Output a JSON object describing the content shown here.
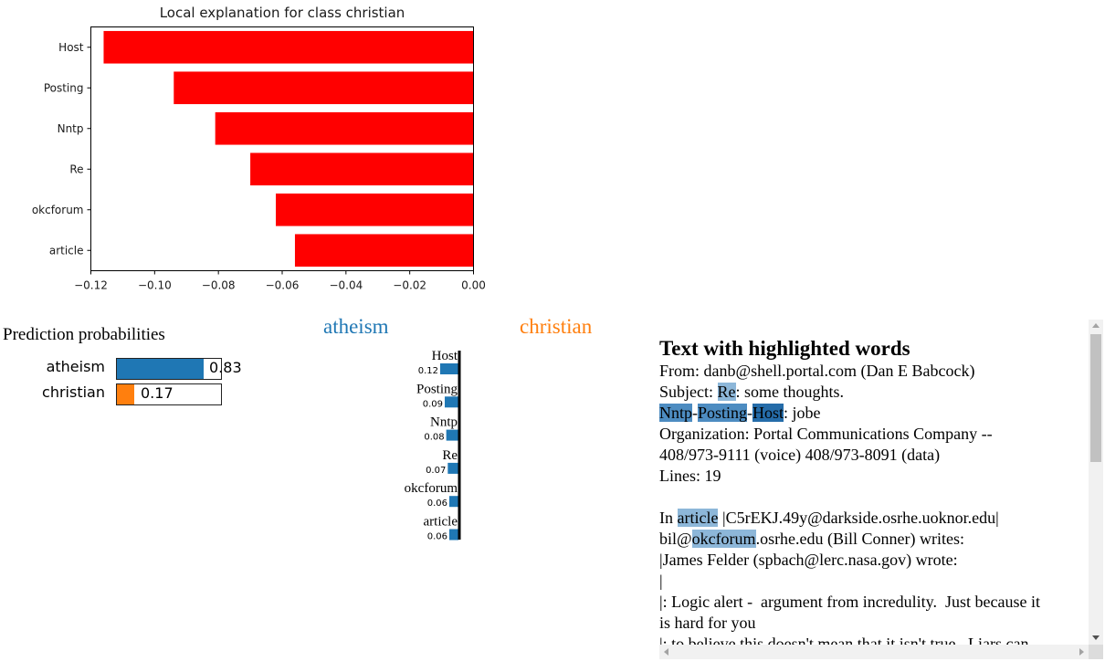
{
  "colors": {
    "bar": "#ff0000",
    "atheism": "#1f77b4",
    "christian": "#ff7f0e",
    "axis": "#000000"
  },
  "chart_data": [
    {
      "type": "bar",
      "orientation": "horizontal",
      "title": "Local explanation for class christian",
      "categories": [
        "Host",
        "Posting",
        "Nntp",
        "Re",
        "okcforum",
        "article"
      ],
      "values": [
        -0.116,
        -0.094,
        -0.081,
        -0.07,
        -0.062,
        -0.056
      ],
      "xlim": [
        -0.12,
        0.0
      ],
      "xticks": [
        -0.12,
        -0.1,
        -0.08,
        -0.06,
        -0.04,
        -0.02,
        0.0
      ],
      "xtick_labels": [
        "−0.12",
        "−0.10",
        "−0.08",
        "−0.06",
        "−0.04",
        "−0.02",
        "0.00"
      ]
    },
    {
      "type": "bar",
      "orientation": "horizontal",
      "title": "Prediction probabilities",
      "categories": [
        "atheism",
        "christian"
      ],
      "values": [
        0.83,
        0.17
      ],
      "value_labels": [
        "0.83",
        "0.17"
      ]
    },
    {
      "type": "bar",
      "orientation": "horizontal",
      "categories": [
        "Host",
        "Posting",
        "Nntp",
        "Re",
        "okcforum",
        "article"
      ],
      "values": [
        0.12,
        0.09,
        0.08,
        0.07,
        0.06,
        0.06
      ],
      "value_labels": [
        "0.12",
        "0.09",
        "0.08",
        "0.07",
        "0.06",
        "0.06"
      ],
      "class_headers": [
        "atheism",
        "christian"
      ]
    }
  ],
  "text_panel": {
    "title": "Text with highlighted words",
    "lines": [
      [
        {
          "t": "From: danb@shell.portal.com (Dan E Babcock)"
        }
      ],
      [
        {
          "t": "Subject: "
        },
        {
          "t": "Re",
          "h": "light"
        },
        {
          "t": ": some thoughts."
        }
      ],
      [
        {
          "t": "Nntp",
          "h": "mid"
        },
        {
          "t": "-"
        },
        {
          "t": "Posting",
          "h": "mid"
        },
        {
          "t": "-"
        },
        {
          "t": "Host",
          "h": "dark"
        },
        {
          "t": ": jobe"
        }
      ],
      [
        {
          "t": "Organization: Portal Communications Company --"
        }
      ],
      [
        {
          "t": "408/973-9111 (voice) 408/973-8091 (data)"
        }
      ],
      [
        {
          "t": "Lines: 19"
        }
      ],
      [
        {
          "t": " "
        }
      ],
      [
        {
          "t": "In "
        },
        {
          "t": "article",
          "h": "light"
        },
        {
          "t": " |C5rEKJ.49y@darkside.osrhe.uoknor.edu|"
        }
      ],
      [
        {
          "t": "bil@"
        },
        {
          "t": "okcforum",
          "h": "light"
        },
        {
          "t": ".osrhe.edu (Bill Conner) writes:"
        }
      ],
      [
        {
          "t": "|James Felder (spbach@lerc.nasa.gov) wrote:"
        }
      ],
      [
        {
          "t": "|"
        }
      ],
      [
        {
          "t": "|: Logic alert -  argument from incredulity.  Just because it"
        }
      ],
      [
        {
          "t": "is hard for you"
        }
      ],
      [
        {
          "t": "|: to believe this doesn't mean that it isn't true.  Liars can"
        }
      ]
    ]
  }
}
